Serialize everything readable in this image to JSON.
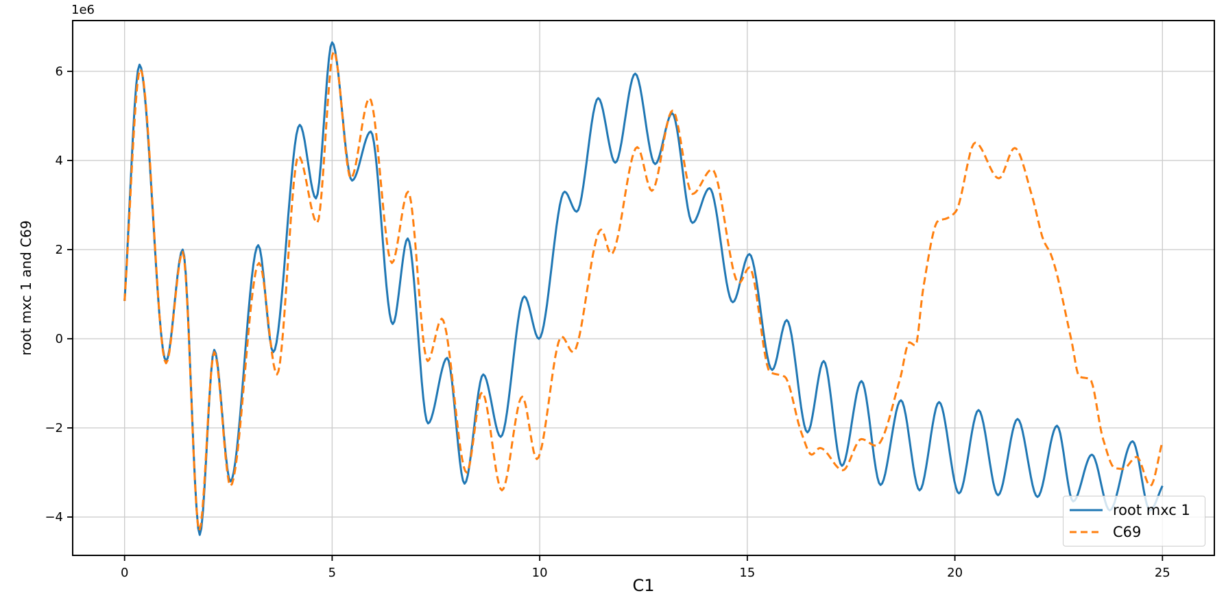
{
  "figure": {
    "background": "#ffffff"
  },
  "chart_data": {
    "type": "line",
    "title": "",
    "xlabel": "C1",
    "ylabel": "root mxc 1 and C69",
    "y_axis_offset_text": "1e6",
    "y_unit_multiplier": 1000000,
    "xlim": [
      -1.25,
      26.25
    ],
    "ylim": [
      -4.86,
      7.14
    ],
    "x_ticks": [
      0,
      5,
      10,
      15,
      20,
      25
    ],
    "y_ticks": [
      -4,
      -2,
      0,
      2,
      4,
      6
    ],
    "grid": true,
    "grid_color": "#cdcdcd",
    "axis_color": "#000000",
    "legend": {
      "location": "lower right",
      "entries": [
        "root mxc 1",
        "C69"
      ]
    },
    "series": [
      {
        "name": "root mxc 1",
        "color": "#1f77b4",
        "line_style": "solid",
        "line_width": 3,
        "points": [
          [
            0.0,
            0.85
          ],
          [
            0.36,
            6.15
          ],
          [
            1.0,
            -0.5
          ],
          [
            1.4,
            2.0
          ],
          [
            1.81,
            -4.4
          ],
          [
            2.16,
            -0.25
          ],
          [
            2.55,
            -3.2
          ],
          [
            3.22,
            2.1
          ],
          [
            3.58,
            -0.3
          ],
          [
            4.22,
            4.8
          ],
          [
            4.61,
            3.15
          ],
          [
            5.0,
            6.65
          ],
          [
            5.48,
            3.55
          ],
          [
            5.93,
            4.65
          ],
          [
            6.46,
            0.33
          ],
          [
            6.82,
            2.25
          ],
          [
            7.31,
            -1.9
          ],
          [
            7.77,
            -0.43
          ],
          [
            8.19,
            -3.25
          ],
          [
            8.64,
            -0.8
          ],
          [
            9.06,
            -2.2
          ],
          [
            9.63,
            0.95
          ],
          [
            9.98,
            0.0
          ],
          [
            10.6,
            3.3
          ],
          [
            10.89,
            2.85
          ],
          [
            11.41,
            5.4
          ],
          [
            11.82,
            3.95
          ],
          [
            12.3,
            5.95
          ],
          [
            12.78,
            3.92
          ],
          [
            13.19,
            5.06
          ],
          [
            13.68,
            2.6
          ],
          [
            14.09,
            3.38
          ],
          [
            14.65,
            0.82
          ],
          [
            15.05,
            1.9
          ],
          [
            15.6,
            -0.7
          ],
          [
            15.95,
            0.42
          ],
          [
            16.45,
            -2.1
          ],
          [
            16.84,
            -0.5
          ],
          [
            17.28,
            -2.85
          ],
          [
            17.75,
            -0.95
          ],
          [
            18.21,
            -3.28
          ],
          [
            18.7,
            -1.38
          ],
          [
            19.15,
            -3.4
          ],
          [
            19.62,
            -1.42
          ],
          [
            20.1,
            -3.47
          ],
          [
            20.57,
            -1.6
          ],
          [
            21.04,
            -3.51
          ],
          [
            21.51,
            -1.8
          ],
          [
            21.99,
            -3.55
          ],
          [
            22.46,
            -1.95
          ],
          [
            22.85,
            -3.65
          ],
          [
            23.3,
            -2.6
          ],
          [
            23.73,
            -3.85
          ],
          [
            24.28,
            -2.3
          ],
          [
            24.7,
            -3.85
          ],
          [
            25.0,
            -3.3
          ]
        ]
      },
      {
        "name": "C69",
        "color": "#ff7f0e",
        "line_style": "dashed",
        "line_width": 3,
        "points": [
          [
            0.0,
            0.85
          ],
          [
            0.38,
            6.05
          ],
          [
            1.0,
            -0.55
          ],
          [
            1.4,
            1.95
          ],
          [
            1.8,
            -4.3
          ],
          [
            2.16,
            -0.3
          ],
          [
            2.55,
            -3.3
          ],
          [
            3.24,
            1.7
          ],
          [
            3.67,
            -0.8
          ],
          [
            4.19,
            4.1
          ],
          [
            4.64,
            2.6
          ],
          [
            5.04,
            6.45
          ],
          [
            5.45,
            3.6
          ],
          [
            5.9,
            5.4
          ],
          [
            6.44,
            1.7
          ],
          [
            6.83,
            3.3
          ],
          [
            7.3,
            -0.5
          ],
          [
            7.64,
            0.45
          ],
          [
            8.24,
            -3.0
          ],
          [
            8.61,
            -1.2
          ],
          [
            9.09,
            -3.4
          ],
          [
            9.58,
            -1.3
          ],
          [
            9.93,
            -2.7
          ],
          [
            10.53,
            0.05
          ],
          [
            10.8,
            -0.3
          ],
          [
            11.48,
            2.45
          ],
          [
            11.72,
            1.9
          ],
          [
            12.35,
            4.3
          ],
          [
            12.7,
            3.32
          ],
          [
            13.2,
            5.12
          ],
          [
            13.68,
            3.25
          ],
          [
            14.15,
            3.8
          ],
          [
            14.8,
            1.25
          ],
          [
            15.05,
            1.6
          ],
          [
            15.55,
            -0.75
          ],
          [
            15.9,
            -0.85
          ],
          [
            16.3,
            -2.1
          ],
          [
            16.55,
            -2.6
          ],
          [
            16.75,
            -2.45
          ],
          [
            17.3,
            -2.95
          ],
          [
            17.75,
            -2.25
          ],
          [
            18.1,
            -2.4
          ],
          [
            18.68,
            -0.9
          ],
          [
            18.9,
            -0.08
          ],
          [
            19.05,
            -0.15
          ],
          [
            19.24,
            1.15
          ],
          [
            19.6,
            2.65
          ],
          [
            19.8,
            2.7
          ],
          [
            20.02,
            2.85
          ],
          [
            20.49,
            4.4
          ],
          [
            21.06,
            3.6
          ],
          [
            21.44,
            4.28
          ],
          [
            21.86,
            3.2
          ],
          [
            22.14,
            2.2
          ],
          [
            22.31,
            1.9
          ],
          [
            22.8,
            0.0
          ],
          [
            23.0,
            -0.85
          ],
          [
            23.25,
            -0.9
          ],
          [
            23.57,
            -2.25
          ],
          [
            23.85,
            -2.9
          ],
          [
            24.05,
            -2.92
          ],
          [
            24.38,
            -2.65
          ],
          [
            24.71,
            -3.3
          ],
          [
            25.0,
            -2.3
          ]
        ]
      }
    ]
  }
}
